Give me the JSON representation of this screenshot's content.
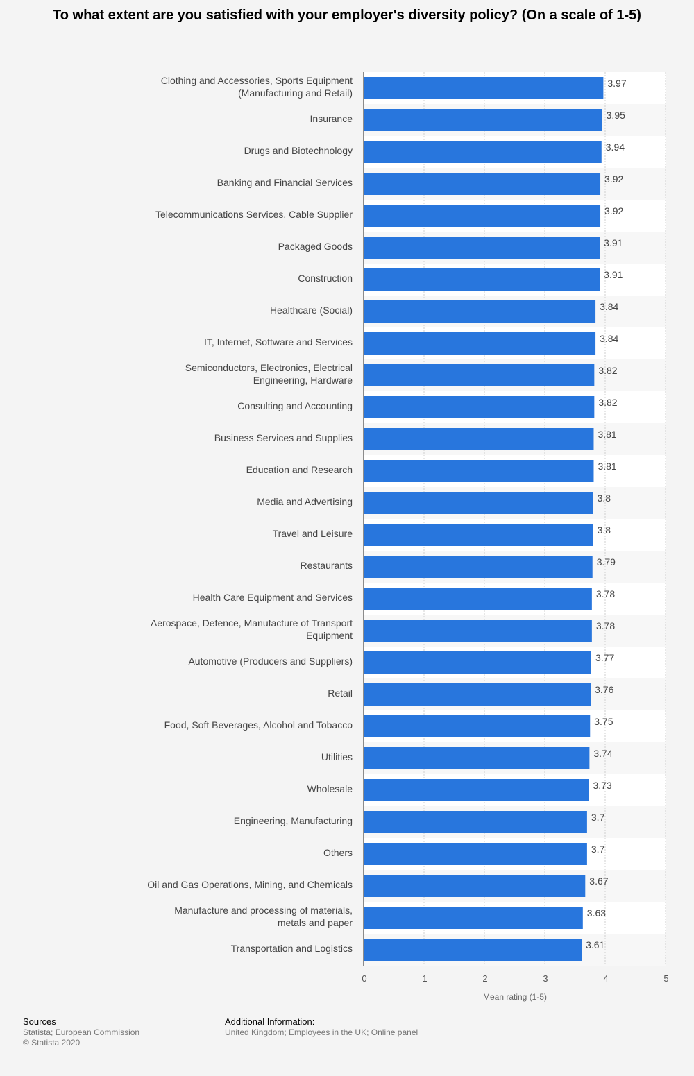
{
  "title": "To what extent are you satisfied with your employer's diversity policy? (On a scale of 1-5)",
  "chart_data": {
    "type": "bar",
    "orientation": "horizontal",
    "title": "To what extent are you satisfied with your employer's diversity policy? (On a scale of 1-5)",
    "xlabel": "Mean rating (1-5)",
    "ylabel": "",
    "xlim": [
      0,
      5
    ],
    "ticks": [
      0,
      1,
      2,
      3,
      4,
      5
    ],
    "grid": true,
    "bar_color": "#2876dd",
    "categories": [
      [
        "Clothing and Accessories, Sports Equipment",
        "(Manufacturing and Retail)"
      ],
      [
        "Insurance"
      ],
      [
        "Drugs and Biotechnology"
      ],
      [
        "Banking and Financial Services"
      ],
      [
        "Telecommunications Services, Cable Supplier"
      ],
      [
        "Packaged Goods"
      ],
      [
        "Construction"
      ],
      [
        "Healthcare (Social)"
      ],
      [
        "IT, Internet, Software and Services"
      ],
      [
        "Semiconductors, Electronics, Electrical",
        "Engineering, Hardware"
      ],
      [
        "Consulting and Accounting"
      ],
      [
        "Business Services and Supplies"
      ],
      [
        "Education and Research"
      ],
      [
        "Media and Advertising"
      ],
      [
        "Travel and Leisure"
      ],
      [
        "Restaurants"
      ],
      [
        "Health Care Equipment and Services"
      ],
      [
        "Aerospace, Defence, Manufacture of Transport",
        "Equipment"
      ],
      [
        "Automotive (Producers and Suppliers)"
      ],
      [
        "Retail"
      ],
      [
        "Food, Soft Beverages, Alcohol and Tobacco"
      ],
      [
        "Utilities"
      ],
      [
        "Wholesale"
      ],
      [
        "Engineering, Manufacturing"
      ],
      [
        "Others"
      ],
      [
        "Oil and Gas Operations, Mining, and Chemicals"
      ],
      [
        "Manufacture and processing of materials,",
        "metals and paper"
      ],
      [
        "Transportation and Logistics"
      ]
    ],
    "values": [
      3.97,
      3.95,
      3.94,
      3.92,
      3.92,
      3.91,
      3.91,
      3.84,
      3.84,
      3.82,
      3.82,
      3.81,
      3.81,
      3.8,
      3.8,
      3.79,
      3.78,
      3.78,
      3.77,
      3.76,
      3.75,
      3.74,
      3.73,
      3.7,
      3.7,
      3.67,
      3.63,
      3.61
    ],
    "value_labels": [
      "3.97",
      "3.95",
      "3.94",
      "3.92",
      "3.92",
      "3.91",
      "3.91",
      "3.84",
      "3.84",
      "3.82",
      "3.82",
      "3.81",
      "3.81",
      "3.8",
      "3.8",
      "3.79",
      "3.78",
      "3.78",
      "3.77",
      "3.76",
      "3.75",
      "3.74",
      "3.73",
      "3.7",
      "3.7",
      "3.67",
      "3.63",
      "3.61"
    ]
  },
  "footer": {
    "sources_heading": "Sources",
    "sources_line1": "Statista; European Commission",
    "sources_line2": "© Statista 2020",
    "info_heading": "Additional Information:",
    "info_text": "United Kingdom; Employees in the UK; Online panel"
  }
}
